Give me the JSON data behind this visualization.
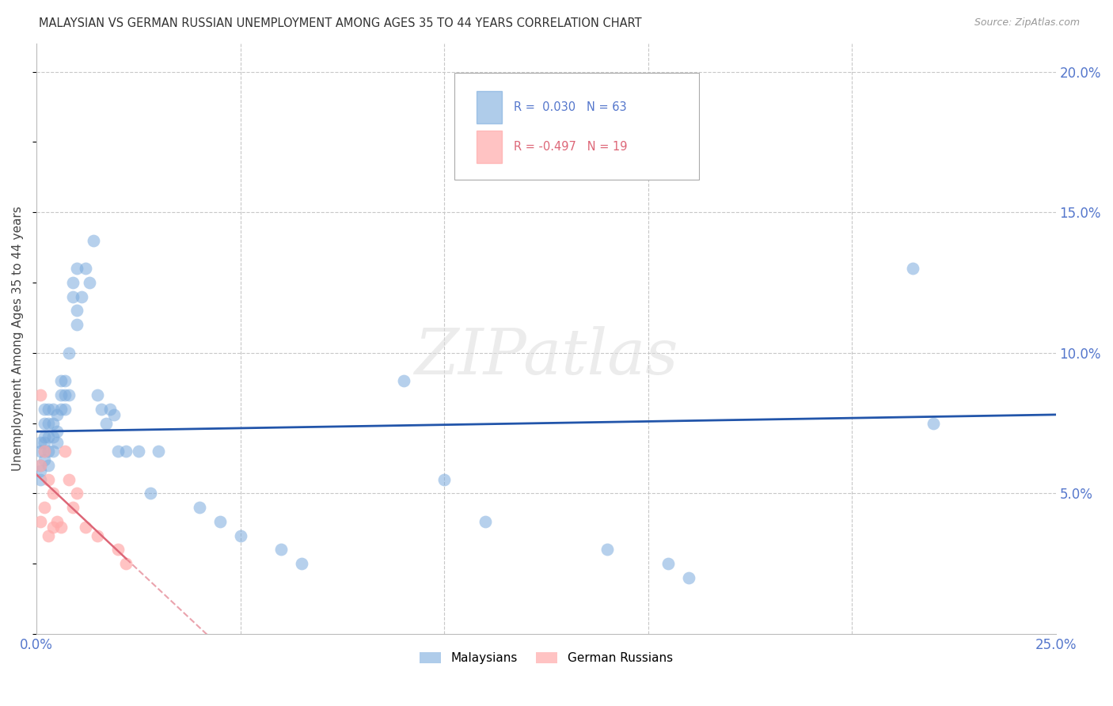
{
  "title": "MALAYSIAN VS GERMAN RUSSIAN UNEMPLOYMENT AMONG AGES 35 TO 44 YEARS CORRELATION CHART",
  "source": "Source: ZipAtlas.com",
  "ylabel": "Unemployment Among Ages 35 to 44 years",
  "xlim": [
    0.0,
    0.25
  ],
  "ylim": [
    0.0,
    0.21
  ],
  "xtick_vals": [
    0.0,
    0.05,
    0.1,
    0.15,
    0.2,
    0.25
  ],
  "xtick_labels": [
    "0.0%",
    "",
    "",
    "",
    "",
    "25.0%"
  ],
  "ytick_vals": [
    0.0,
    0.05,
    0.1,
    0.15,
    0.2
  ],
  "ytick_labels_right": [
    "",
    "5.0%",
    "10.0%",
    "15.0%",
    "20.0%"
  ],
  "background_color": "#ffffff",
  "grid_color": "#c8c8c8",
  "blue_color": "#7aaadd",
  "pink_color": "#ffaaaa",
  "line_blue": "#2255aa",
  "line_pink": "#dd6677",
  "tick_label_color": "#5577cc",
  "malaysians_x": [
    0.001,
    0.001,
    0.001,
    0.001,
    0.001,
    0.002,
    0.002,
    0.002,
    0.002,
    0.002,
    0.002,
    0.003,
    0.003,
    0.003,
    0.003,
    0.003,
    0.004,
    0.004,
    0.004,
    0.004,
    0.005,
    0.005,
    0.005,
    0.006,
    0.006,
    0.006,
    0.007,
    0.007,
    0.007,
    0.008,
    0.008,
    0.009,
    0.009,
    0.01,
    0.01,
    0.01,
    0.011,
    0.012,
    0.013,
    0.014,
    0.015,
    0.016,
    0.017,
    0.018,
    0.019,
    0.02,
    0.022,
    0.025,
    0.028,
    0.03,
    0.04,
    0.045,
    0.05,
    0.06,
    0.065,
    0.09,
    0.1,
    0.11,
    0.14,
    0.155,
    0.16,
    0.215,
    0.22
  ],
  "malaysians_y": [
    0.06,
    0.065,
    0.068,
    0.055,
    0.058,
    0.062,
    0.065,
    0.068,
    0.07,
    0.075,
    0.08,
    0.06,
    0.065,
    0.07,
    0.075,
    0.08,
    0.065,
    0.07,
    0.075,
    0.08,
    0.068,
    0.072,
    0.078,
    0.08,
    0.085,
    0.09,
    0.08,
    0.085,
    0.09,
    0.085,
    0.1,
    0.12,
    0.125,
    0.11,
    0.115,
    0.13,
    0.12,
    0.13,
    0.125,
    0.14,
    0.085,
    0.08,
    0.075,
    0.08,
    0.078,
    0.065,
    0.065,
    0.065,
    0.05,
    0.065,
    0.045,
    0.04,
    0.035,
    0.03,
    0.025,
    0.09,
    0.055,
    0.04,
    0.03,
    0.025,
    0.02,
    0.13,
    0.075
  ],
  "german_russian_x": [
    0.001,
    0.001,
    0.001,
    0.002,
    0.002,
    0.003,
    0.003,
    0.004,
    0.004,
    0.005,
    0.006,
    0.007,
    0.008,
    0.009,
    0.01,
    0.012,
    0.015,
    0.02,
    0.022
  ],
  "german_russian_y": [
    0.085,
    0.06,
    0.04,
    0.065,
    0.045,
    0.055,
    0.035,
    0.05,
    0.038,
    0.04,
    0.038,
    0.065,
    0.055,
    0.045,
    0.05,
    0.038,
    0.035,
    0.03,
    0.025
  ]
}
